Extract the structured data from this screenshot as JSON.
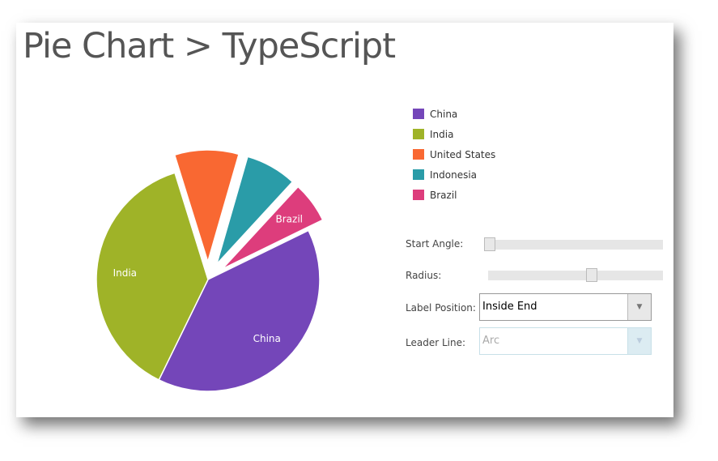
{
  "title": "Pie Chart > TypeScript",
  "chart_data": {
    "type": "pie",
    "categories": [
      "China",
      "India",
      "United States",
      "Indonesia",
      "Brazil"
    ],
    "values": [
      1367,
      1314,
      321,
      256,
      205
    ],
    "colors": [
      "#7446b9",
      "#9fb328",
      "#f96832",
      "#2a9ca8",
      "#dd3d7c"
    ],
    "exploded": [
      "United States",
      "Indonesia",
      "Brazil"
    ],
    "data_labels": [
      "China",
      "India",
      "",
      "",
      "Brazil"
    ],
    "legend": "right"
  },
  "controls": {
    "start_angle": {
      "label": "Start Angle:",
      "value_fraction": 0
    },
    "radius": {
      "label": "Radius:",
      "value_fraction": 0.6
    },
    "label_position": {
      "label": "Label Position:",
      "value": "Inside End"
    },
    "leader_line": {
      "label": "Leader Line:",
      "value": "Arc",
      "disabled": true
    }
  }
}
